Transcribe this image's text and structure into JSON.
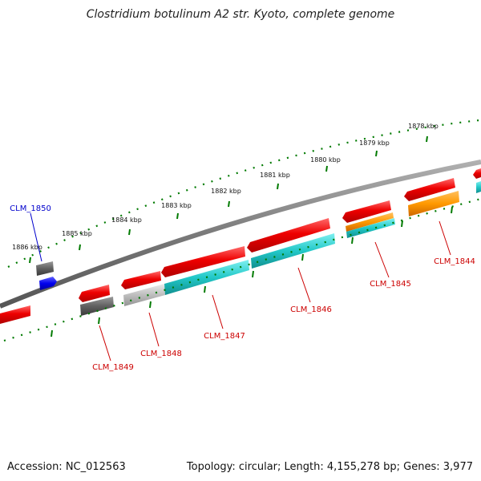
{
  "title": "Clostridium botulinum A2 str. Kyoto, complete genome",
  "footer": {
    "accession": "Accession: NC_012563",
    "summary": "Topology: circular; Length: 4,155,278 bp; Genes: 3,977"
  },
  "colors": {
    "forward_gene": "#ee0000",
    "cds_cyan": "#22c8c8",
    "cds_orange": "#ff9900",
    "gray_gene": "#606060",
    "light_gray_gene": "#bdbdbd",
    "blue_gene": "#0000ee",
    "tick_green": "#007a00",
    "backbone": "#7a7a7a",
    "label_red": "#cc0000",
    "label_blue": "#0000cc"
  },
  "scale_labels": [
    "1878 kbp",
    "1879 kbp",
    "1880 kbp",
    "1881 kbp",
    "1882 kbp",
    "1883 kbp",
    "1884 kbp",
    "1885 kbp",
    "1886 kbp"
  ],
  "genes": [
    {
      "label": "CLM_1844",
      "color": "label_red"
    },
    {
      "label": "CLM_1845",
      "color": "label_red"
    },
    {
      "label": "CLM_1846",
      "color": "label_red"
    },
    {
      "label": "CLM_1847",
      "color": "label_red"
    },
    {
      "label": "CLM_1848",
      "color": "label_red"
    },
    {
      "label": "CLM_1849",
      "color": "label_red"
    },
    {
      "label": "CLM_1850",
      "color": "label_blue"
    }
  ]
}
